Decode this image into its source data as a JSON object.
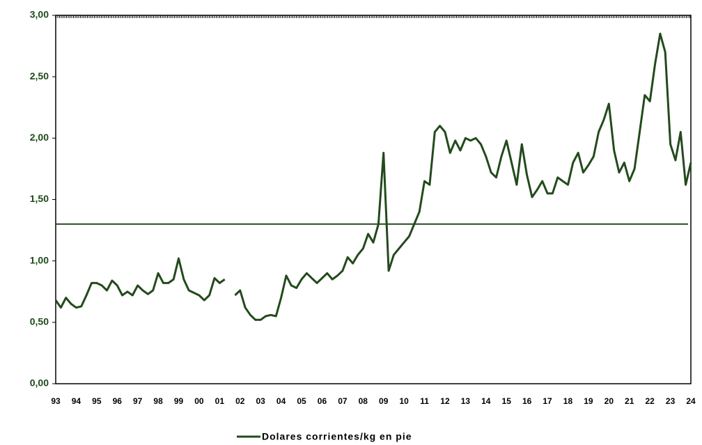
{
  "chart_data": {
    "type": "line",
    "categories": [
      "93",
      null,
      null,
      null,
      "94",
      null,
      null,
      null,
      "95",
      null,
      null,
      null,
      "96",
      null,
      null,
      null,
      "97",
      null,
      null,
      null,
      "98",
      null,
      null,
      null,
      "99",
      null,
      null,
      null,
      "00",
      null,
      null,
      null,
      "01",
      null,
      null,
      null,
      "02",
      null,
      null,
      null,
      "03",
      null,
      null,
      null,
      "04",
      null,
      null,
      null,
      "05",
      null,
      null,
      null,
      "06",
      null,
      null,
      null,
      "07",
      null,
      null,
      null,
      "08",
      null,
      null,
      null,
      "09",
      null,
      null,
      null,
      "10",
      null,
      null,
      null,
      "11",
      null,
      null,
      null,
      "12",
      null,
      null,
      null,
      "13",
      null,
      null,
      null,
      "14",
      null,
      null,
      null,
      "15",
      null,
      null,
      null,
      "16",
      null,
      null,
      null,
      "17",
      null,
      null,
      null,
      "18",
      null,
      null,
      null,
      "19",
      null,
      null,
      null,
      "20",
      null,
      null,
      null,
      "21",
      null,
      null,
      null,
      "22",
      null,
      null,
      null,
      "23",
      null,
      null,
      null,
      "24"
    ],
    "series": [
      {
        "name": "Dolares corrientes/kg en pie",
        "color": "#234a1c",
        "values": [
          0.68,
          0.62,
          0.7,
          0.65,
          0.62,
          0.63,
          0.72,
          0.82,
          0.82,
          0.8,
          0.76,
          0.84,
          0.8,
          0.72,
          0.75,
          0.72,
          0.8,
          0.76,
          0.73,
          0.76,
          0.9,
          0.82,
          0.82,
          0.85,
          1.02,
          0.85,
          0.76,
          0.74,
          0.72,
          0.68,
          0.72,
          0.86,
          0.82,
          0.85,
          null,
          0.72,
          0.76,
          0.62,
          0.56,
          0.52,
          0.52,
          0.55,
          0.56,
          0.55,
          0.7,
          0.88,
          0.8,
          0.78,
          0.85,
          0.9,
          0.86,
          0.82,
          0.86,
          0.9,
          0.85,
          0.88,
          0.92,
          1.03,
          0.98,
          1.05,
          1.1,
          1.22,
          1.15,
          1.3,
          1.88,
          0.92,
          1.05,
          1.1,
          1.15,
          1.2,
          1.3,
          1.4,
          1.65,
          1.62,
          2.05,
          2.1,
          2.05,
          1.88,
          1.98,
          1.9,
          2.0,
          1.98,
          2.0,
          1.95,
          1.85,
          1.72,
          1.68,
          1.85,
          1.98,
          1.8,
          1.62,
          1.95,
          1.7,
          1.52,
          1.58,
          1.65,
          1.55,
          1.55,
          1.68,
          1.65,
          1.62,
          1.8,
          1.88,
          1.72,
          1.78,
          1.85,
          2.05,
          2.15,
          2.28,
          1.9,
          1.72,
          1.8,
          1.65,
          1.75,
          2.05,
          2.35,
          2.3,
          2.6,
          2.85,
          2.7,
          1.95,
          1.82,
          2.05,
          1.62,
          1.8
        ]
      }
    ],
    "reference_line": 1.3,
    "ylim": [
      0,
      3
    ],
    "yticks": [
      {
        "value": 0,
        "label": "0,00"
      },
      {
        "value": 0.5,
        "label": "0,50"
      },
      {
        "value": 1,
        "label": "1,00"
      },
      {
        "value": 1.5,
        "label": "1,50"
      },
      {
        "value": 2,
        "label": "2,00"
      },
      {
        "value": 2.5,
        "label": "2,50"
      },
      {
        "value": 3,
        "label": "3,00"
      }
    ],
    "legend": "bottom"
  }
}
